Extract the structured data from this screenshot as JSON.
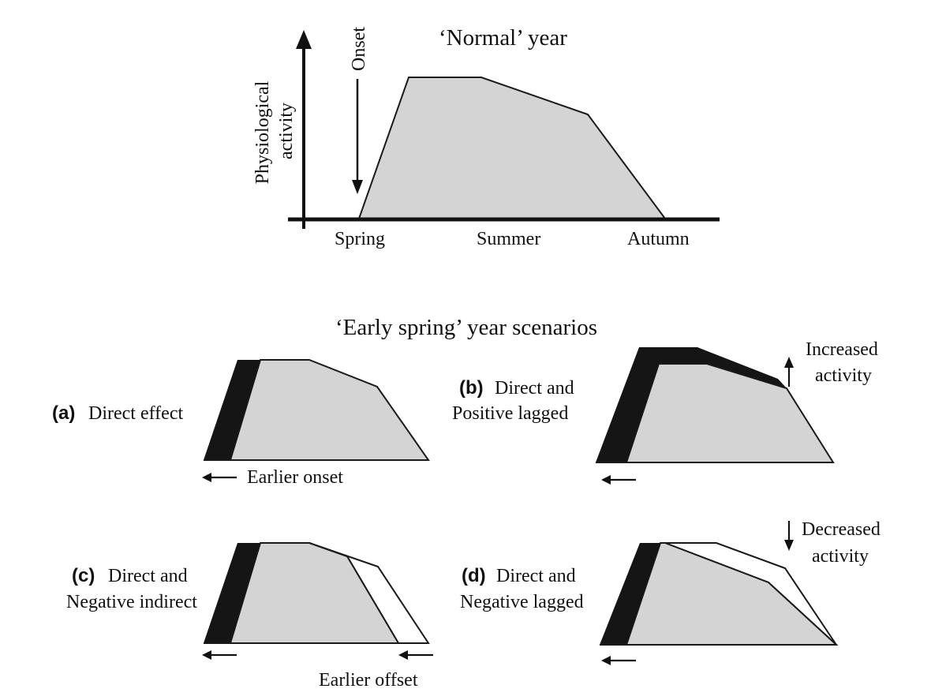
{
  "normal_panel": {
    "title": "‘Normal’  year",
    "y_axis_label_line1": "Physiological",
    "y_axis_label_line2": "activity",
    "onset_label": "Onset",
    "seasons": [
      "Spring",
      "Summer",
      "Autumn"
    ]
  },
  "scenarios_title": "‘Early spring’ year scenarios",
  "panels": {
    "a": {
      "letter": "(a)",
      "line1": "Direct effect",
      "line2": ""
    },
    "b": {
      "letter": "(b)",
      "line1": "Direct and",
      "line2": "Positive lagged"
    },
    "c": {
      "letter": "(c)",
      "line1": "Direct and",
      "line2": "Negative indirect"
    },
    "d": {
      "letter": "(d)",
      "line1": "Direct and",
      "line2": "Negative lagged"
    }
  },
  "annotations": {
    "earlier_onset": "Earlier onset",
    "increased_1": "Increased",
    "increased_2": "activity",
    "decreased_1": "Decreased",
    "decreased_2": "activity",
    "earlier_offset": "Earlier offset"
  },
  "colors": {
    "fill_gray": "#d4d4d4",
    "fill_black": "#151515",
    "stroke": "#1a1a1a",
    "offset_fill": "#ffffff"
  }
}
